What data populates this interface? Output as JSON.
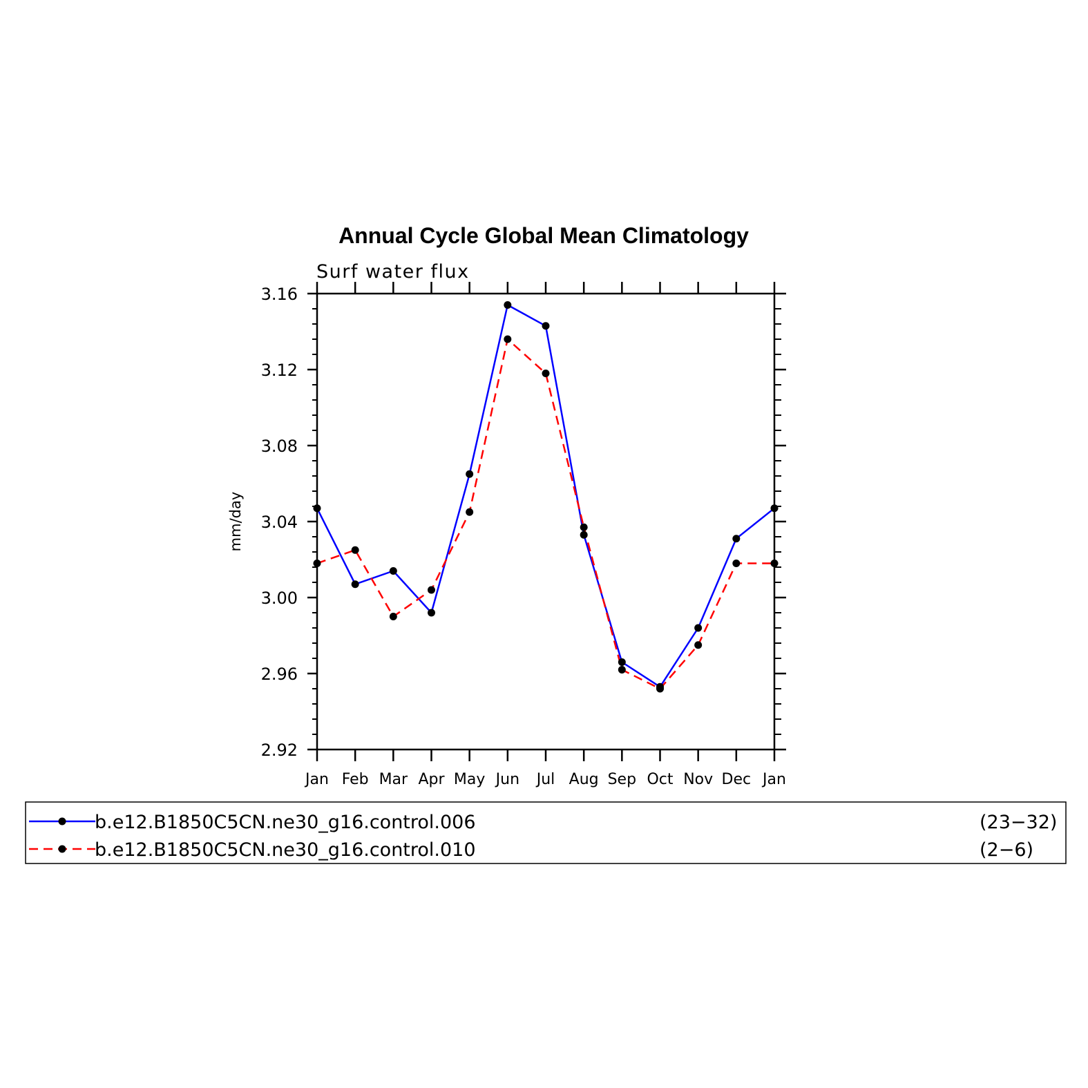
{
  "chart_data": {
    "type": "line",
    "title": "Annual Cycle Global Mean Climatology",
    "subtitle": "Surf water flux",
    "ylabel": "mm/day",
    "xlabel": "",
    "categories": [
      "Jan",
      "Feb",
      "Mar",
      "Apr",
      "May",
      "Jun",
      "Jul",
      "Aug",
      "Sep",
      "Oct",
      "Nov",
      "Dec",
      "Jan"
    ],
    "ylim": [
      2.92,
      3.16
    ],
    "yticks": [
      "2.92",
      "2.96",
      "3.00",
      "3.04",
      "3.08",
      "3.12",
      "3.16"
    ],
    "grid": false,
    "legend_position": "bottom",
    "series": [
      {
        "name": "b.e12.B1850C5CN.ne30_g16.control.006",
        "years": "(23−32)",
        "color": "#0000ff",
        "line_style": "solid",
        "values": [
          3.047,
          3.007,
          3.014,
          2.992,
          3.065,
          3.154,
          3.143,
          3.033,
          2.966,
          2.953,
          2.984,
          3.031,
          3.047
        ]
      },
      {
        "name": "b.e12.B1850C5CN.ne30_g16.control.010",
        "years": "(2−6)",
        "color": "#ff0000",
        "line_style": "dashed",
        "values": [
          3.018,
          3.025,
          2.99,
          3.004,
          3.045,
          3.136,
          3.118,
          3.037,
          2.962,
          2.952,
          2.975,
          3.018,
          3.018
        ]
      }
    ]
  }
}
